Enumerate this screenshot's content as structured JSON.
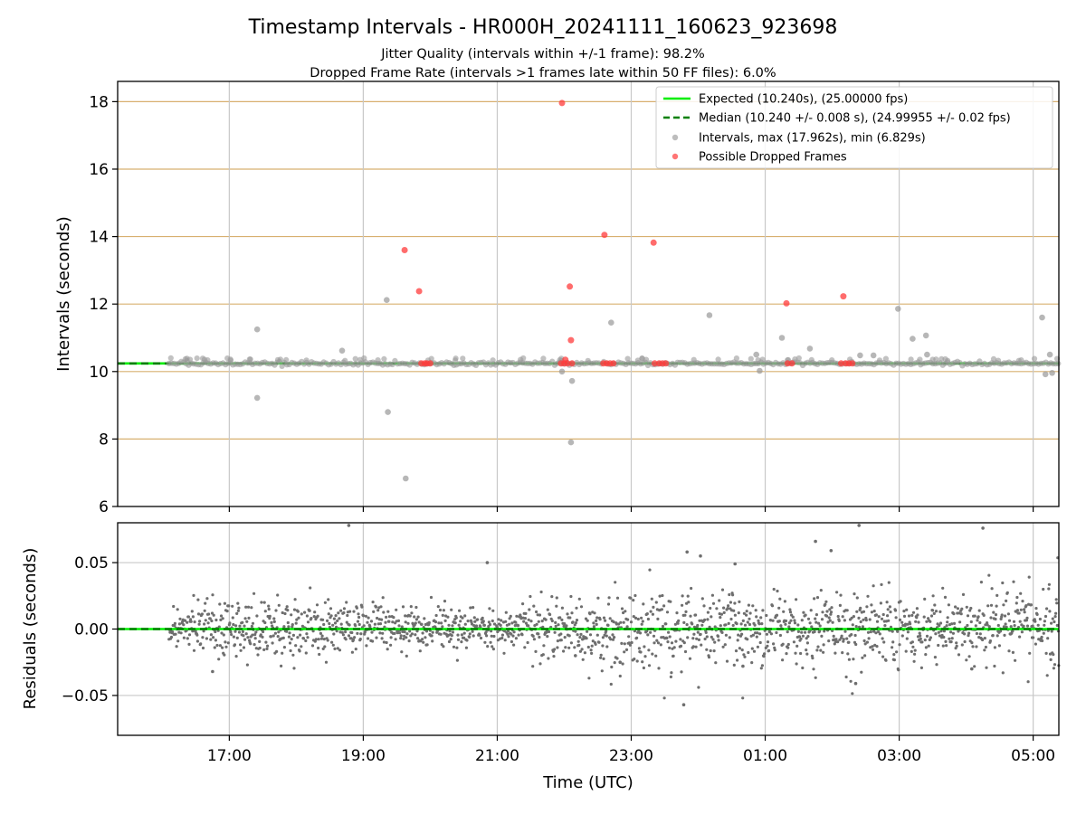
{
  "title": "Timestamp Intervals - HR000H_20241111_160623_923698",
  "subtitle_line1": "Jitter Quality (intervals within +/-1 frame): 98.2%",
  "subtitle_line2": "Dropped Frame Rate (intervals >1 frames late within 50 FF files): 6.0%",
  "colors": {
    "expected": "#00ee00",
    "median": "#008000",
    "intervals": "#999999",
    "dropped": "#ff3b3b",
    "residuals": "#6e6e6e",
    "hgrid_top": "#d8b070",
    "grid": "#c8c8c8"
  },
  "chart_data": [
    {
      "type": "scatter",
      "panel": "intervals",
      "ylabel": "Intervals (seconds)",
      "ylim": [
        6,
        18.6
      ],
      "xlim": [
        "15:20",
        "05:23"
      ],
      "yticks": [
        "6",
        "8",
        "10",
        "12",
        "14",
        "16",
        "18"
      ],
      "grid": true,
      "legend_placement": "top-right",
      "legend": [
        "Expected (10.240s), (25.00000 fps)",
        "Median (10.240 +/- 0.008 s), (24.99955 +/- 0.02 fps)",
        "Intervals, max (17.962s), min (6.829s)",
        "Possible Dropped Frames"
      ],
      "expected_line": 10.24,
      "median_line": 10.24,
      "baseline_x_range": [
        "16:06",
        "05:23"
      ],
      "interval_outliers": [
        [
          "17:25",
          11.25
        ],
        [
          "17:25",
          9.22
        ],
        [
          "18:41",
          10.62
        ],
        [
          "19:21",
          12.12
        ],
        [
          "19:22",
          8.8
        ],
        [
          "19:38",
          6.83
        ],
        [
          "21:58",
          10.0
        ],
        [
          "22:07",
          9.72
        ],
        [
          "22:06",
          7.9
        ],
        [
          "22:42",
          11.45
        ],
        [
          "24:10",
          11.67
        ],
        [
          "24:52",
          10.5
        ],
        [
          "24:55",
          10.02
        ],
        [
          "25:15",
          11.0
        ],
        [
          "25:40",
          10.68
        ],
        [
          "26:25",
          10.48
        ],
        [
          "26:37",
          10.48
        ],
        [
          "26:59",
          11.86
        ],
        [
          "27:12",
          10.97
        ],
        [
          "27:24",
          11.07
        ],
        [
          "27:25",
          10.5
        ],
        [
          "29:08",
          11.6
        ],
        [
          "29:11",
          9.92
        ],
        [
          "29:15",
          10.5
        ],
        [
          "29:17",
          9.96
        ]
      ],
      "dropped_frames": [
        [
          "19:37",
          13.6
        ],
        [
          "19:50",
          12.38
        ],
        [
          "21:58",
          17.96
        ],
        [
          "22:05",
          12.52
        ],
        [
          "22:06",
          10.93
        ],
        [
          "22:36",
          14.05
        ],
        [
          "23:20",
          13.82
        ],
        [
          "25:19",
          12.02
        ],
        [
          "26:10",
          12.23
        ],
        [
          "22:01",
          10.35
        ],
        [
          "19:52",
          10.24
        ],
        [
          "19:55",
          10.24
        ],
        [
          "19:57",
          10.24
        ],
        [
          "20:00",
          10.24
        ],
        [
          "21:57",
          10.24
        ],
        [
          "22:00",
          10.24
        ],
        [
          "22:03",
          10.24
        ],
        [
          "22:07",
          10.24
        ],
        [
          "22:35",
          10.24
        ],
        [
          "22:38",
          10.24
        ],
        [
          "22:41",
          10.24
        ],
        [
          "22:44",
          10.24
        ],
        [
          "23:21",
          10.24
        ],
        [
          "23:25",
          10.24
        ],
        [
          "23:28",
          10.24
        ],
        [
          "23:31",
          10.24
        ],
        [
          "25:20",
          10.24
        ],
        [
          "25:24",
          10.24
        ],
        [
          "26:08",
          10.24
        ],
        [
          "26:12",
          10.24
        ],
        [
          "26:15",
          10.24
        ],
        [
          "26:18",
          10.24
        ]
      ]
    },
    {
      "type": "scatter",
      "panel": "residuals",
      "ylabel": "Residuals (seconds)",
      "xlabel": "Time (UTC)",
      "ylim": [
        -0.08,
        0.08
      ],
      "yticks": [
        "−0.05",
        "0.00",
        "0.05"
      ],
      "xticks": [
        "17:00",
        "19:00",
        "21:00",
        "23:00",
        "01:00",
        "03:00",
        "05:00"
      ],
      "grid": true,
      "zero_line": 0.0,
      "x_range": [
        "16:06",
        "05:23"
      ],
      "spread_profile": [
        [
          "16:06",
          0.006
        ],
        [
          "16:30",
          0.01
        ],
        [
          "17:00",
          0.012
        ],
        [
          "19:00",
          0.011
        ],
        [
          "21:00",
          0.007
        ],
        [
          "22:00",
          0.012
        ],
        [
          "23:00",
          0.016
        ],
        [
          "01:00",
          0.014
        ],
        [
          "03:00",
          0.013
        ],
        [
          "05:23",
          0.014
        ]
      ],
      "extreme_points": [
        [
          "18:47",
          0.078
        ],
        [
          "20:51",
          0.05
        ],
        [
          "23:50",
          0.058
        ],
        [
          "24:02",
          0.055
        ],
        [
          "24:33",
          0.049
        ],
        [
          "25:45",
          0.066
        ],
        [
          "25:59",
          0.059
        ],
        [
          "26:24",
          0.078
        ],
        [
          "28:15",
          0.076
        ],
        [
          "16:45",
          -0.032
        ],
        [
          "23:47",
          -0.057
        ],
        [
          "26:21",
          -0.041
        ],
        [
          "22:10",
          -0.02
        ],
        [
          "22:50",
          -0.025
        ],
        [
          "24:40",
          -0.028
        ],
        [
          "28:05",
          -0.03
        ]
      ]
    }
  ]
}
